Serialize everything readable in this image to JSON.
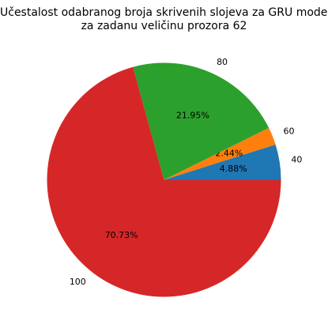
{
  "chart_data": {
    "type": "pie",
    "title_lines": [
      "Učestalost odabranog broja skrivenih slojeva za GRU model",
      "za zadanu veličinu prozora 62"
    ],
    "slices": [
      {
        "label": "40",
        "value": 4.88,
        "pct_label": "4.88%",
        "color": "#1f77b4"
      },
      {
        "label": "60",
        "value": 2.44,
        "pct_label": "2.44%",
        "color": "#ff7f0e"
      },
      {
        "label": "80",
        "value": 21.95,
        "pct_label": "21.95%",
        "color": "#2ca02c"
      },
      {
        "label": "100",
        "value": 70.73,
        "pct_label": "70.73%",
        "color": "#d62728"
      }
    ]
  }
}
